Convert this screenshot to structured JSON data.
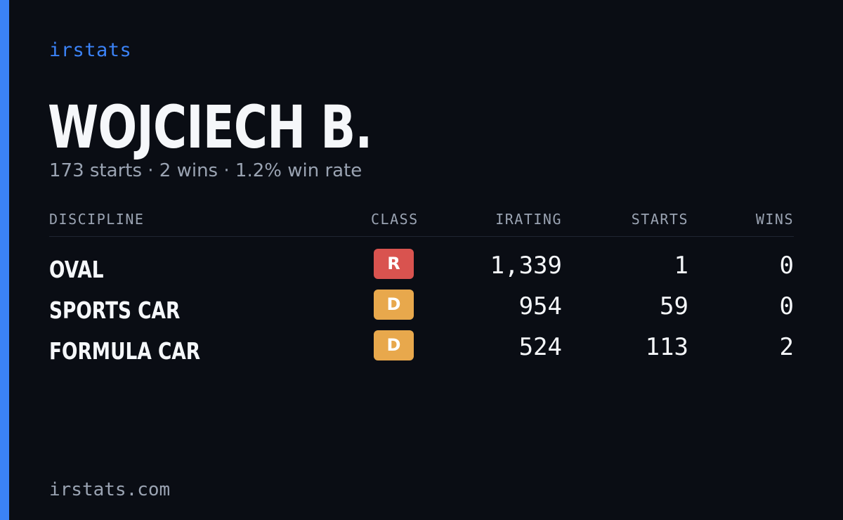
{
  "brand": "irstats",
  "driver": {
    "name": "WOJCIECH B.",
    "summary": "173 starts · 2 wins · 1.2% win rate"
  },
  "table": {
    "headers": {
      "discipline": "DISCIPLINE",
      "class": "CLASS",
      "irating": "IRATING",
      "starts": "STARTS",
      "wins": "WINS"
    },
    "rows": [
      {
        "discipline": "OVAL",
        "class": "R",
        "class_color": "#d9534f",
        "irating": "1,339",
        "starts": "1",
        "wins": "0"
      },
      {
        "discipline": "SPORTS CAR",
        "class": "D",
        "class_color": "#e8a84c",
        "irating": "954",
        "starts": "59",
        "wins": "0"
      },
      {
        "discipline": "FORMULA CAR",
        "class": "D",
        "class_color": "#e8a84c",
        "irating": "524",
        "starts": "113",
        "wins": "2"
      }
    ]
  },
  "footer": "irstats.com",
  "colors": {
    "background": "#0a0d14",
    "accent": "#3b82f6",
    "text_primary": "#f5f7fa",
    "text_muted": "#9aa3b2"
  }
}
